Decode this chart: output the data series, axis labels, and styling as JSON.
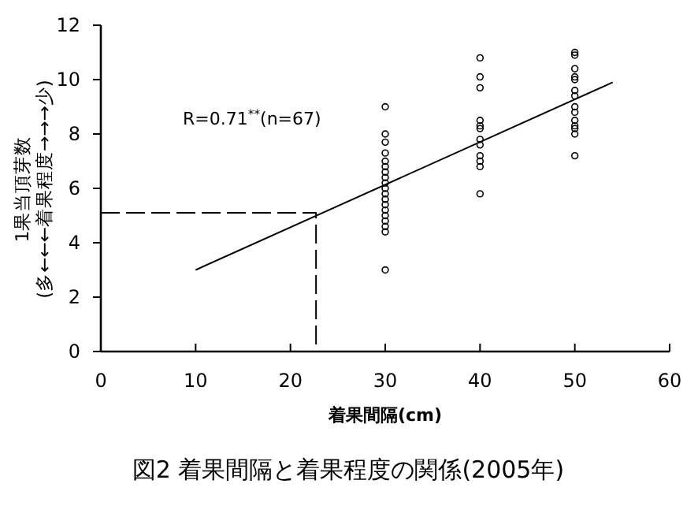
{
  "chart_data": {
    "type": "scatter",
    "title": "図2  着果間隔と着果程度の関係(2005年)",
    "xlabel": "着果間隔(cm)",
    "ylabel": "1果当頂芽数\n(多←←←着果程度→→→少)",
    "annotations": [
      "R=0.71$^{**}$(n=67)"
    ],
    "xlim": [
      0,
      60
    ],
    "xticks": [
      0,
      10,
      20,
      30,
      40,
      50,
      60
    ],
    "ylim": [
      0,
      12
    ],
    "yticks": [
      0,
      2,
      4,
      6,
      8,
      10,
      12
    ],
    "grid": false,
    "series": [
      {
        "marker": "circle",
        "color": "#000000",
        "x": [
          30,
          30,
          30,
          30,
          30,
          30,
          30,
          30,
          30,
          30,
          30,
          30,
          30,
          30,
          30,
          30,
          30,
          30,
          30,
          40,
          40,
          40,
          40,
          40,
          40,
          40,
          40,
          40,
          40,
          40,
          40,
          50,
          50,
          50,
          50,
          50,
          50,
          50,
          50,
          50,
          50,
          50,
          50,
          50,
          50
        ],
        "values": [
          9.0,
          8.0,
          7.7,
          7.3,
          7.0,
          6.8,
          6.6,
          6.4,
          6.2,
          6.0,
          5.8,
          5.6,
          5.4,
          5.2,
          5.0,
          4.8,
          4.6,
          4.4,
          3.0,
          10.8,
          10.1,
          9.7,
          8.5,
          8.3,
          8.2,
          7.8,
          7.6,
          7.2,
          7.0,
          6.8,
          5.8,
          11.0,
          10.9,
          10.4,
          10.1,
          10.0,
          9.6,
          9.4,
          9.0,
          8.8,
          8.5,
          8.3,
          8.2,
          8.0,
          7.2
        ]
      },
      {
        "type": "line",
        "color": "#000000",
        "line_style": "solid",
        "x": [
          10,
          54
        ],
        "values": [
          3.0,
          9.9
        ]
      },
      {
        "type": "line",
        "color": "#000000",
        "line_style": "dashed",
        "x": [
          0,
          22.7,
          22.7
        ],
        "values": [
          5.1,
          5.1,
          0
        ]
      }
    ]
  }
}
